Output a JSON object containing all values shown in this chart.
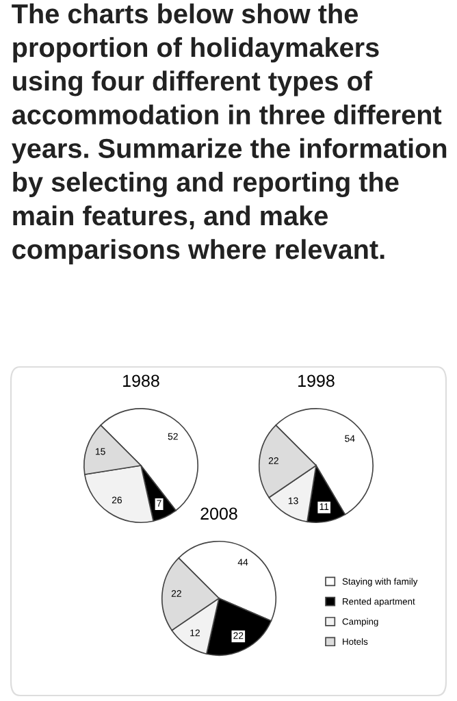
{
  "chart_data": [
    {
      "type": "pie",
      "title": "1988",
      "annotations": [
        "The charts below show the proportion of holidaymakers using four different types of accommodation in three different years. Summarize the information by selecting and reporting the main features, and make comparisons where relevant."
      ],
      "values": [
        52,
        7,
        26,
        15
      ],
      "colors": [
        "#ffffff",
        "#000000",
        "#f2f2f2",
        "#dcdcdc"
      ],
      "data_labels": true
    },
    {
      "type": "pie",
      "title": "1998",
      "values": [
        54,
        11,
        13,
        22
      ],
      "colors": [
        "#ffffff",
        "#000000",
        "#f2f2f2",
        "#dcdcdc"
      ],
      "data_labels": true
    },
    {
      "type": "pie",
      "title": "2008",
      "categories": [
        "Staying with family",
        "Rented apartment",
        "Camping",
        "Hotels"
      ],
      "values": [
        44,
        22,
        12,
        22
      ],
      "colors": [
        "#ffffff",
        "#000000",
        "#f2f2f2",
        "#dcdcdc"
      ],
      "data_labels": true,
      "legend": "right"
    }
  ]
}
